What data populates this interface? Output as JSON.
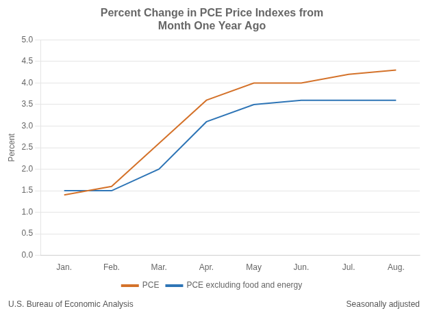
{
  "chart_data": {
    "type": "line",
    "title": "Percent Change in PCE Price Indexes from\nMonth One Year Ago",
    "ylabel": "Percent",
    "categories": [
      "Jan.",
      "Feb.",
      "Mar.",
      "Apr.",
      "May",
      "Jun.",
      "Jul.",
      "Aug."
    ],
    "series": [
      {
        "name": "PCE",
        "color": "#D4722A",
        "values": [
          1.4,
          1.6,
          2.6,
          3.6,
          4.0,
          4.0,
          4.2,
          4.3
        ]
      },
      {
        "name": "PCE excluding food and energy",
        "color": "#2E75B6",
        "values": [
          1.5,
          1.5,
          2.0,
          3.1,
          3.5,
          3.6,
          3.6,
          3.6
        ]
      }
    ],
    "ylim": [
      0.0,
      5.0
    ],
    "yticks": [
      {
        "value": 0.0,
        "label": "0.0"
      },
      0.5,
      {
        "value": 1.0,
        "label": "1.0"
      },
      1.5,
      {
        "value": 2.0,
        "label": "2.0"
      },
      2.5,
      {
        "value": 3.0,
        "label": "3.0"
      },
      3.5,
      {
        "value": 4.0,
        "label": "4.0"
      },
      4.5,
      {
        "value": 5.0,
        "label": "5.0"
      }
    ],
    "grid": "y",
    "legend": "bottom",
    "annotations": [
      "U.S. Bureau of Economic Analysis",
      "Seasonally adjusted"
    ]
  }
}
